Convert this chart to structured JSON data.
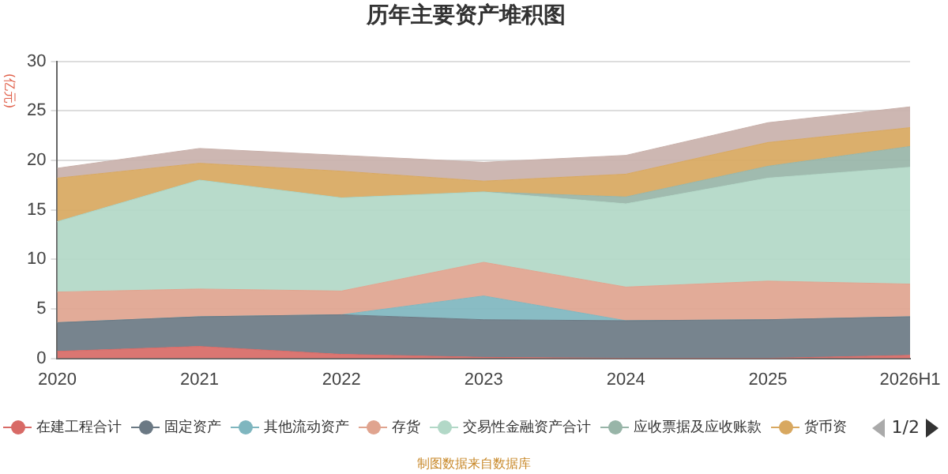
{
  "chart_data": {
    "type": "area",
    "title": "历年主要资产堆积图",
    "ylabel": "(亿元)",
    "categories": [
      "2020",
      "2021",
      "2022",
      "2023",
      "2024",
      "2025",
      "2026H1"
    ],
    "stacked": true,
    "ylim": [
      0,
      30
    ],
    "yticks": [
      0,
      5,
      10,
      15,
      20,
      25,
      30
    ],
    "grid": "y",
    "legend": "bottom",
    "marker": "none",
    "series": [
      {
        "name": "在建工程合计",
        "color": "#d86a66",
        "values": [
          0.7,
          1.2,
          0.4,
          0.1,
          0,
          0,
          0.3
        ]
      },
      {
        "name": "固定资产",
        "color": "#6b7984",
        "values": [
          2.9,
          3.0,
          4.0,
          3.8,
          3.8,
          3.9,
          3.9
        ]
      },
      {
        "name": "其他流动资产",
        "color": "#7fb6bf",
        "values": [
          0,
          0,
          0,
          2.4,
          0,
          0,
          0
        ]
      },
      {
        "name": "存货",
        "color": "#e0a48f",
        "values": [
          3.1,
          2.8,
          2.4,
          3.4,
          3.4,
          3.9,
          3.3
        ]
      },
      {
        "name": "交易性金融资产合计",
        "color": "#b2d8c7",
        "values": [
          7.1,
          11.0,
          9.4,
          7.1,
          8.4,
          10.4,
          11.8
        ]
      },
      {
        "name": "应收票据及应收账款",
        "color": "#98b5a8",
        "values": [
          0,
          0,
          0,
          0,
          0.7,
          1.2,
          2.1
        ]
      },
      {
        "name": "货币资",
        "color": "#d8a860",
        "values": [
          4.4,
          1.7,
          2.7,
          1.1,
          2.3,
          2.4,
          1.9
        ]
      },
      {
        "color": "#c9b1ab",
        "values": [
          1.0,
          1.5,
          1.6,
          1.9,
          1.9,
          2.0,
          2.1
        ]
      }
    ],
    "annotations": [
      "1/2",
      "制图数据来自数据库"
    ]
  }
}
